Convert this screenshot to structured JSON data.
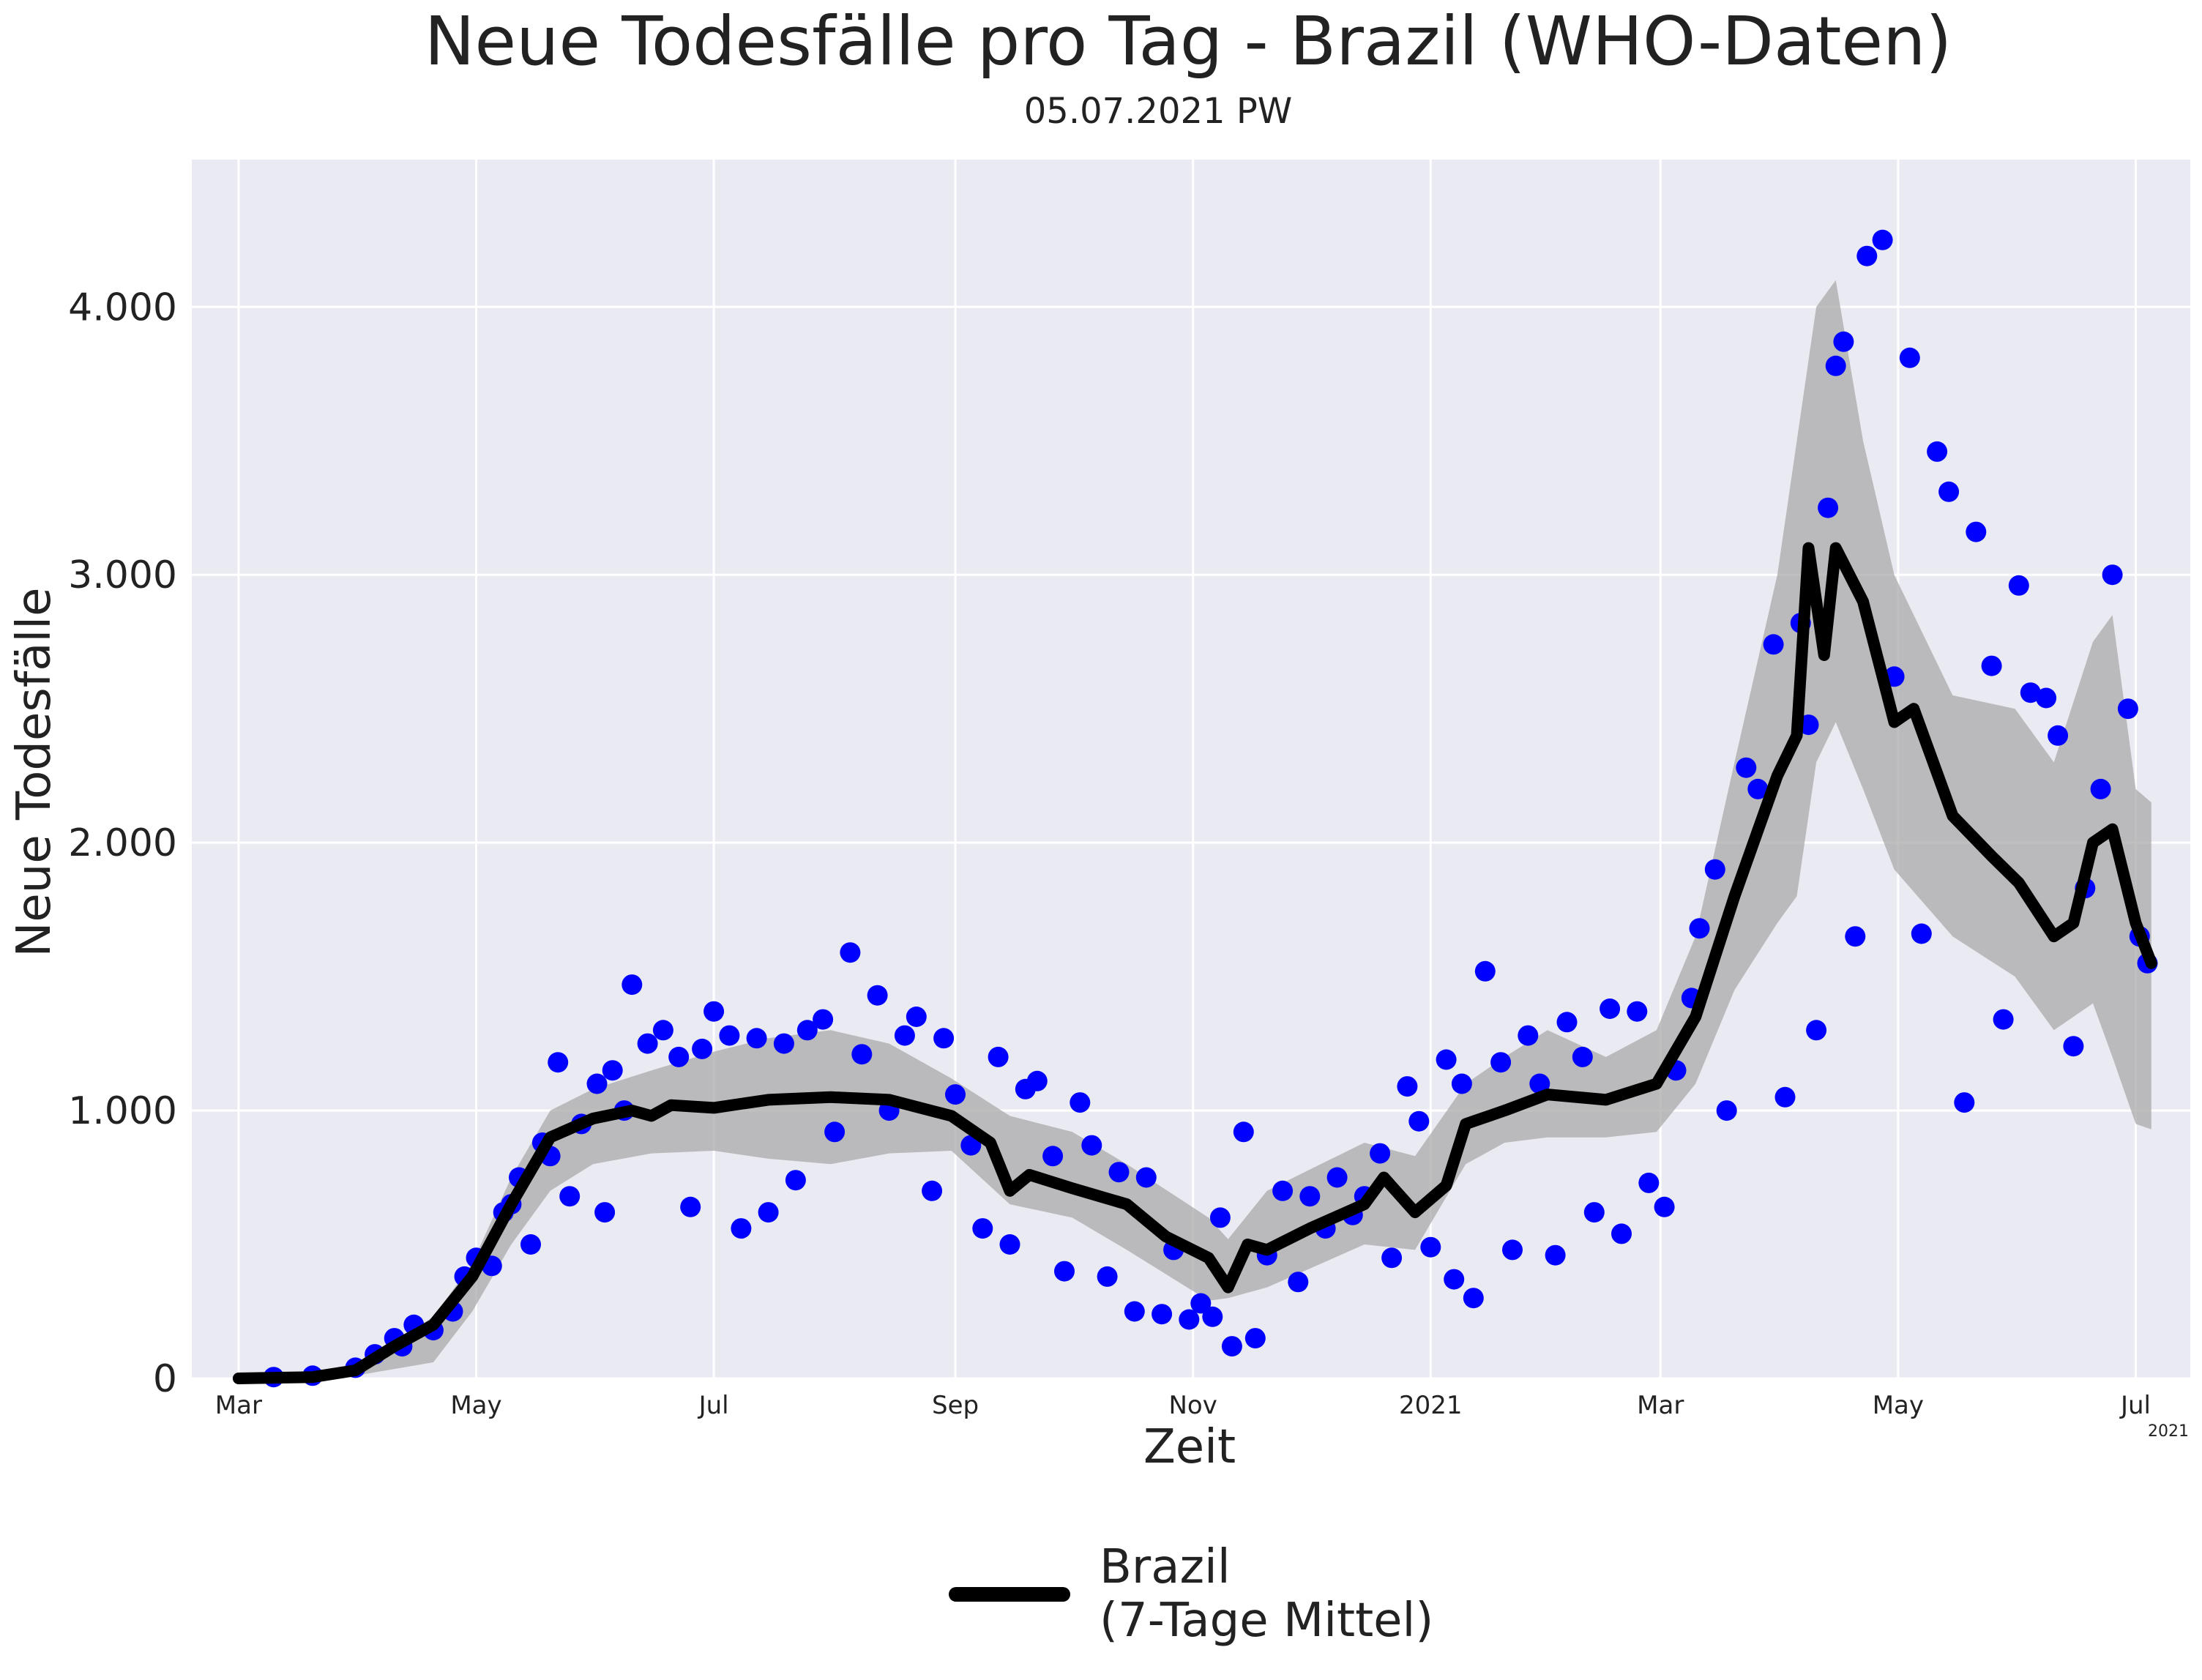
{
  "chart_data": {
    "type": "line",
    "title": "Neue Todesfälle pro Tag - Brazil (WHO-Daten)",
    "subtitle": "05.07.2021 PW",
    "xlabel": "Zeit",
    "ylabel": "Neue Todesfälle",
    "x_offset_label": "2021",
    "xlim": [
      "2020-02-18",
      "2021-07-15"
    ],
    "ylim": [
      0,
      4550
    ],
    "grid": true,
    "legend_position": "bottom-center",
    "x_ticks": [
      {
        "date": "2020-03-01",
        "label": "Mar"
      },
      {
        "date": "2020-05-01",
        "label": "May"
      },
      {
        "date": "2020-07-01",
        "label": "Jul"
      },
      {
        "date": "2020-09-01",
        "label": "Sep"
      },
      {
        "date": "2020-11-01",
        "label": "Nov"
      },
      {
        "date": "2021-01-01",
        "label": "2021"
      },
      {
        "date": "2021-03-01",
        "label": "Mar"
      },
      {
        "date": "2021-05-01",
        "label": "May"
      },
      {
        "date": "2021-07-01",
        "label": "Jul"
      }
    ],
    "y_ticks": [
      {
        "value": 0,
        "label": "0"
      },
      {
        "value": 1000,
        "label": "1.000"
      },
      {
        "value": 2000,
        "label": "2.000"
      },
      {
        "value": 3000,
        "label": "3.000"
      },
      {
        "value": 4000,
        "label": "4.000"
      }
    ],
    "colors": {
      "background": "#eaeaf2",
      "grid": "#ffffff",
      "points": "#0000ff",
      "line": "#000000",
      "band": "#a9a9a9"
    },
    "series": [
      {
        "name": "Brazil\n(7-Tage Mittel)",
        "legend_lines": [
          "Brazil",
          "(7-Tage Mittel)"
        ],
        "role": "7-day mean",
        "x": [
          "2020-03-01",
          "2020-03-20",
          "2020-03-31",
          "2020-04-10",
          "2020-04-20",
          "2020-04-30",
          "2020-05-10",
          "2020-05-20",
          "2020-05-31",
          "2020-06-10",
          "2020-06-15",
          "2020-06-20",
          "2020-07-01",
          "2020-07-15",
          "2020-07-31",
          "2020-08-15",
          "2020-08-31",
          "2020-09-10",
          "2020-09-15",
          "2020-09-20",
          "2020-10-01",
          "2020-10-15",
          "2020-10-25",
          "2020-11-05",
          "2020-11-10",
          "2020-11-15",
          "2020-11-20",
          "2020-12-01",
          "2020-12-15",
          "2020-12-20",
          "2020-12-28",
          "2021-01-05",
          "2021-01-10",
          "2021-01-20",
          "2021-01-31",
          "2021-02-15",
          "2021-02-28",
          "2021-03-10",
          "2021-03-20",
          "2021-03-31",
          "2021-04-05",
          "2021-04-08",
          "2021-04-12",
          "2021-04-15",
          "2021-04-22",
          "2021-04-30",
          "2021-05-05",
          "2021-05-15",
          "2021-05-25",
          "2021-06-01",
          "2021-06-10",
          "2021-06-15",
          "2021-06-20",
          "2021-06-25",
          "2021-07-01",
          "2021-07-05"
        ],
        "y": [
          0,
          5,
          30,
          120,
          200,
          380,
          650,
          900,
          970,
          1000,
          980,
          1020,
          1010,
          1040,
          1050,
          1040,
          980,
          880,
          700,
          760,
          710,
          650,
          530,
          450,
          340,
          500,
          480,
          560,
          650,
          750,
          620,
          720,
          950,
          1000,
          1060,
          1040,
          1100,
          1350,
          1800,
          2250,
          2400,
          3100,
          2700,
          3100,
          2900,
          2450,
          2500,
          2100,
          1950,
          1850,
          1650,
          1700,
          2000,
          2050,
          1700,
          1550
        ]
      }
    ],
    "band": {
      "role": "variation range",
      "x": [
        "2020-03-01",
        "2020-03-31",
        "2020-04-20",
        "2020-04-30",
        "2020-05-10",
        "2020-05-20",
        "2020-05-31",
        "2020-06-15",
        "2020-07-01",
        "2020-07-15",
        "2020-07-31",
        "2020-08-15",
        "2020-08-31",
        "2020-09-15",
        "2020-10-01",
        "2020-10-15",
        "2020-11-05",
        "2020-11-10",
        "2020-11-20",
        "2020-12-01",
        "2020-12-15",
        "2020-12-28",
        "2021-01-10",
        "2021-01-20",
        "2021-01-31",
        "2021-02-15",
        "2021-02-28",
        "2021-03-10",
        "2021-03-20",
        "2021-03-31",
        "2021-04-05",
        "2021-04-10",
        "2021-04-15",
        "2021-04-22",
        "2021-04-30",
        "2021-05-15",
        "2021-05-31",
        "2021-06-10",
        "2021-06-20",
        "2021-06-25",
        "2021-07-01",
        "2021-07-05"
      ],
      "upper": [
        0,
        40,
        230,
        430,
        750,
        1000,
        1080,
        1150,
        1220,
        1270,
        1300,
        1250,
        1120,
        980,
        920,
        800,
        600,
        520,
        700,
        780,
        880,
        830,
        1100,
        1200,
        1300,
        1200,
        1300,
        1650,
        2300,
        3000,
        3500,
        4000,
        4100,
        3500,
        3000,
        2550,
        2500,
        2300,
        2750,
        2850,
        2200,
        2150
      ],
      "lower": [
        0,
        10,
        60,
        250,
        500,
        700,
        800,
        840,
        850,
        820,
        800,
        840,
        850,
        650,
        600,
        480,
        290,
        300,
        340,
        410,
        500,
        480,
        800,
        880,
        900,
        900,
        920,
        1100,
        1450,
        1700,
        1800,
        2300,
        2450,
        2200,
        1900,
        1650,
        1500,
        1300,
        1400,
        1200,
        950,
        930
      ]
    },
    "points": {
      "role": "daily values",
      "x": [
        "2020-03-10",
        "2020-03-20",
        "2020-03-31",
        "2020-04-05",
        "2020-04-10",
        "2020-04-12",
        "2020-04-15",
        "2020-04-20",
        "2020-04-25",
        "2020-04-28",
        "2020-05-01",
        "2020-05-05",
        "2020-05-08",
        "2020-05-10",
        "2020-05-12",
        "2020-05-15",
        "2020-05-18",
        "2020-05-20",
        "2020-05-22",
        "2020-05-25",
        "2020-05-28",
        "2020-06-01",
        "2020-06-03",
        "2020-06-05",
        "2020-06-08",
        "2020-06-10",
        "2020-06-14",
        "2020-06-18",
        "2020-06-22",
        "2020-06-25",
        "2020-06-28",
        "2020-07-01",
        "2020-07-05",
        "2020-07-08",
        "2020-07-12",
        "2020-07-15",
        "2020-07-19",
        "2020-07-22",
        "2020-07-25",
        "2020-07-29",
        "2020-08-01",
        "2020-08-05",
        "2020-08-08",
        "2020-08-12",
        "2020-08-15",
        "2020-08-19",
        "2020-08-22",
        "2020-08-26",
        "2020-08-29",
        "2020-09-01",
        "2020-09-05",
        "2020-09-08",
        "2020-09-12",
        "2020-09-15",
        "2020-09-19",
        "2020-09-22",
        "2020-09-26",
        "2020-09-29",
        "2020-10-03",
        "2020-10-06",
        "2020-10-10",
        "2020-10-13",
        "2020-10-17",
        "2020-10-20",
        "2020-10-24",
        "2020-10-27",
        "2020-10-31",
        "2020-11-03",
        "2020-11-06",
        "2020-11-08",
        "2020-11-11",
        "2020-11-14",
        "2020-11-17",
        "2020-11-20",
        "2020-11-24",
        "2020-11-28",
        "2020-12-01",
        "2020-12-05",
        "2020-12-08",
        "2020-12-12",
        "2020-12-15",
        "2020-12-19",
        "2020-12-22",
        "2020-12-26",
        "2020-12-29",
        "2021-01-01",
        "2021-01-05",
        "2021-01-07",
        "2021-01-09",
        "2021-01-12",
        "2021-01-15",
        "2021-01-19",
        "2021-01-22",
        "2021-01-26",
        "2021-01-29",
        "2021-02-02",
        "2021-02-05",
        "2021-02-09",
        "2021-02-12",
        "2021-02-16",
        "2021-02-19",
        "2021-02-23",
        "2021-02-26",
        "2021-03-02",
        "2021-03-05",
        "2021-03-09",
        "2021-03-11",
        "2021-03-15",
        "2021-03-18",
        "2021-03-23",
        "2021-03-26",
        "2021-03-30",
        "2021-04-02",
        "2021-04-06",
        "2021-04-08",
        "2021-04-10",
        "2021-04-13",
        "2021-04-15",
        "2021-04-17",
        "2021-04-20",
        "2021-04-23",
        "2021-04-27",
        "2021-04-30",
        "2021-05-04",
        "2021-05-07",
        "2021-05-11",
        "2021-05-14",
        "2021-05-18",
        "2021-05-21",
        "2021-05-25",
        "2021-05-28",
        "2021-06-01",
        "2021-06-04",
        "2021-06-08",
        "2021-06-11",
        "2021-06-15",
        "2021-06-18",
        "2021-06-22",
        "2021-06-25",
        "2021-06-29",
        "2021-07-02",
        "2021-07-04"
      ],
      "y": [
        5,
        10,
        40,
        90,
        150,
        120,
        200,
        180,
        250,
        380,
        450,
        420,
        620,
        650,
        750,
        500,
        880,
        830,
        1180,
        680,
        950,
        1100,
        620,
        1150,
        1000,
        1470,
        1250,
        1300,
        1200,
        640,
        1230,
        1370,
        1280,
        560,
        1270,
        620,
        1250,
        740,
        1300,
        1340,
        920,
        1590,
        1210,
        1430,
        1000,
        1280,
        1350,
        700,
        1270,
        1060,
        870,
        560,
        1200,
        500,
        1080,
        1110,
        830,
        400,
        1030,
        870,
        380,
        770,
        250,
        750,
        240,
        480,
        220,
        280,
        230,
        600,
        120,
        920,
        150,
        460,
        700,
        360,
        680,
        560,
        750,
        610,
        680,
        840,
        450,
        1090,
        960,
        490,
        1190,
        370,
        1100,
        300,
        1520,
        1180,
        480,
        1280,
        1100,
        460,
        1330,
        1200,
        620,
        1380,
        540,
        1370,
        730,
        640,
        1150,
        1420,
        1680,
        1900,
        1000,
        2280,
        2200,
        2740,
        1050,
        2820,
        2440,
        1300,
        3250,
        3780,
        3870,
        1650,
        4190,
        4250,
        2620,
        3810,
        1660,
        3460,
        3310,
        1030,
        3160,
        2660,
        1340,
        2960,
        2560,
        2540,
        2400,
        1240,
        1830,
        2200,
        3000,
        2500,
        1650,
        1550
      ]
    }
  }
}
